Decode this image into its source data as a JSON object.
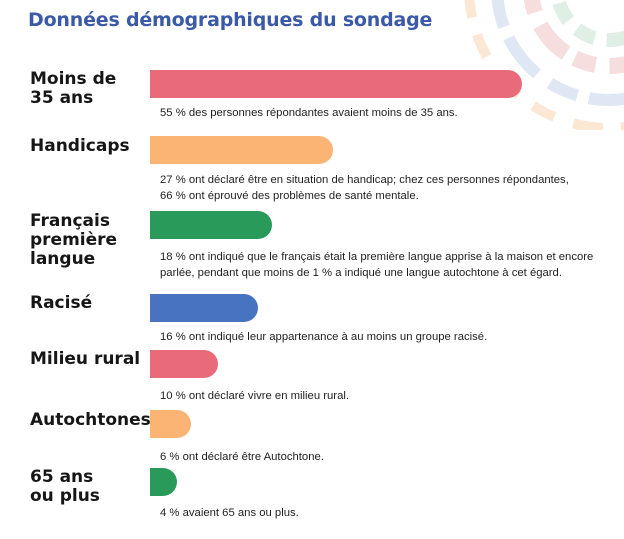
{
  "title": "Données démographiques du sondage",
  "colors": {
    "title": "#3a5aa8",
    "red": "#e96a78",
    "orange": "#fbb473",
    "green": "#2a9a5a",
    "blue": "#4773c1"
  },
  "chart_data": {
    "type": "bar",
    "orientation": "horizontal",
    "title": "Données démographiques du sondage",
    "unit": "%",
    "xlim": [
      0,
      55
    ],
    "categories": [
      "Moins de 35 ans",
      "Handicaps",
      "Français première langue",
      "Racisé",
      "Milieu rural",
      "Autochtones",
      "65 ans ou plus"
    ],
    "values": [
      55,
      27,
      18,
      16,
      10,
      6,
      4
    ],
    "bar_colors": [
      "#e96a78",
      "#fbb473",
      "#2a9a5a",
      "#4773c1",
      "#e96a78",
      "#fbb473",
      "#2a9a5a"
    ],
    "items": [
      {
        "label_lines": [
          "Moins de",
          "35 ans"
        ],
        "value": 55,
        "color": "#e96a78",
        "desc_lines": [
          "55 % des personnes répondantes avaient moins de 35 ans."
        ]
      },
      {
        "label_lines": [
          "Handicaps"
        ],
        "value": 27,
        "color": "#fbb473",
        "desc_lines": [
          "27 % ont déclaré être en situation de handicap; chez ces personnes répondantes,",
          "66 % ont éprouvé des problèmes de santé mentale."
        ]
      },
      {
        "label_lines": [
          "Français",
          "première",
          "langue"
        ],
        "value": 18,
        "color": "#2a9a5a",
        "desc_lines": [
          "18 % ont indiqué que le français était la première langue apprise à la maison et encore",
          "parlée, pendant que moins de 1 % a indiqué une langue autochtone à cet égard."
        ]
      },
      {
        "label_lines": [
          "Racisé"
        ],
        "value": 16,
        "color": "#4773c1",
        "desc_lines": [
          "16 % ont indiqué leur appartenance à au moins un groupe racisé."
        ]
      },
      {
        "label_lines": [
          "Milieu rural"
        ],
        "value": 10,
        "color": "#e96a78",
        "desc_lines": [
          "10 % ont déclaré vivre en milieu rural."
        ]
      },
      {
        "label_lines": [
          "Autochtones"
        ],
        "value": 6,
        "color": "#fbb473",
        "desc_lines": [
          "6 % ont déclaré être Autochtone."
        ]
      },
      {
        "label_lines": [
          "65 ans",
          "ou plus"
        ],
        "value": 4,
        "color": "#2a9a5a",
        "desc_lines": [
          "4 % avaient 65 ans ou plus."
        ]
      }
    ]
  }
}
